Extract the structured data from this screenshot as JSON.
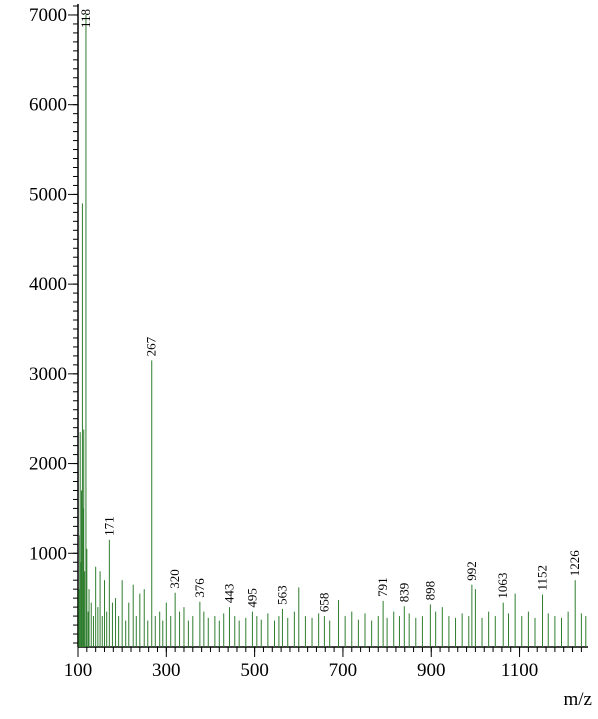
{
  "chart_data": {
    "type": "stick",
    "x_label": "m/z",
    "xlim": [
      100,
      1255
    ],
    "xticks": [
      100,
      300,
      500,
      700,
      900,
      1100
    ],
    "ylim": [
      0,
      7100
    ],
    "yticks": [
      1000,
      2000,
      3000,
      4000,
      5000,
      6000,
      7000
    ],
    "color": "#2f7d2f",
    "series": [
      {
        "labels": true,
        "x": [
          118,
          171,
          267,
          320,
          376,
          443,
          495,
          563,
          658,
          791,
          839,
          898,
          992,
          1063,
          1152,
          1226
        ],
        "values": [
          7000,
          1150,
          3150,
          560,
          460,
          400,
          350,
          380,
          300,
          470,
          410,
          430,
          650,
          450,
          540,
          700
        ]
      },
      {
        "labels": false,
        "x": [
          102,
          104,
          105,
          107,
          108,
          110,
          112,
          113,
          115,
          120,
          123,
          125,
          130,
          135,
          140,
          145,
          150,
          155,
          160,
          165,
          178,
          185,
          192,
          200,
          208,
          215,
          225,
          232,
          240,
          250,
          258,
          275,
          285,
          292,
          300,
          310,
          330,
          340,
          350,
          360,
          385,
          395,
          410,
          420,
          430,
          455,
          465,
          480,
          505,
          515,
          530,
          545,
          555,
          575,
          590,
          600,
          615,
          630,
          645,
          670,
          690,
          705,
          720,
          735,
          750,
          765,
          780,
          800,
          815,
          828,
          850,
          865,
          880,
          910,
          925,
          940,
          955,
          970,
          985,
          1000,
          1015,
          1030,
          1045,
          1075,
          1090,
          1105,
          1120,
          1135,
          1165,
          1180,
          1195,
          1210,
          1240,
          1250
        ],
        "values": [
          600,
          1200,
          2350,
          900,
          1700,
          4900,
          1500,
          2380,
          800,
          1050,
          350,
          600,
          450,
          300,
          850,
          400,
          800,
          300,
          700,
          350,
          450,
          500,
          300,
          700,
          250,
          450,
          650,
          300,
          550,
          600,
          250,
          300,
          350,
          250,
          450,
          300,
          350,
          400,
          250,
          300,
          350,
          280,
          300,
          250,
          330,
          300,
          250,
          280,
          300,
          260,
          330,
          250,
          300,
          280,
          350,
          620,
          300,
          280,
          330,
          250,
          480,
          300,
          350,
          260,
          330,
          250,
          300,
          280,
          350,
          300,
          330,
          280,
          300,
          350,
          400,
          300,
          280,
          330,
          300,
          600,
          280,
          350,
          300,
          330,
          550,
          300,
          350,
          280,
          330,
          300,
          280,
          350,
          330,
          300
        ]
      }
    ]
  }
}
